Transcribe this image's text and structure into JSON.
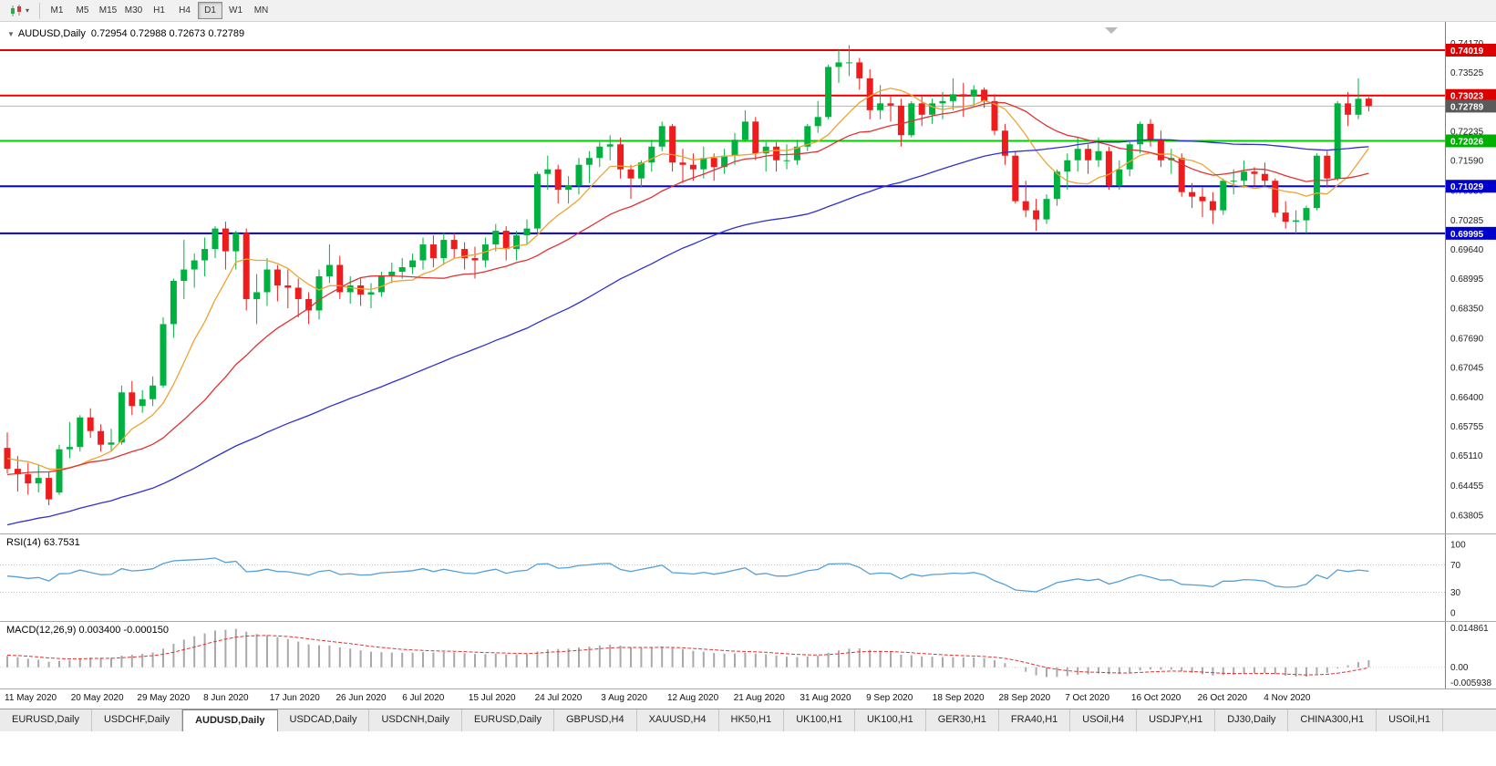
{
  "toolbar": {
    "timeframes": [
      "M1",
      "M5",
      "M15",
      "M30",
      "H1",
      "H4",
      "D1",
      "W1",
      "MN"
    ],
    "active_timeframe": "D1"
  },
  "chart_data": {
    "type": "candlestick",
    "title": "AUDUSD,Daily",
    "ohlc_text": "0.72954 0.72988 0.72673 0.72789",
    "current": {
      "open": 0.72954,
      "high": 0.72988,
      "low": 0.72673,
      "close": 0.72789
    },
    "colors": {
      "bull": "#00b140",
      "bear": "#ee1c1c"
    },
    "price_axis": {
      "top_price": 0.7464,
      "bottom_price": 0.6338,
      "labels": [
        "0.74170",
        "0.73525",
        "0.72880",
        "0.72235",
        "0.71590",
        "0.70930",
        "0.70285",
        "0.69640",
        "0.68995",
        "0.68350",
        "0.67690",
        "0.67045",
        "0.66400",
        "0.65755",
        "0.65110",
        "0.64455",
        "0.63805"
      ]
    },
    "h_lines": [
      {
        "price": 0.74019,
        "label": "0.74019",
        "color": "#e60000",
        "box_color": "#dd0000",
        "width": 2
      },
      {
        "price": 0.73023,
        "label": "0.73023",
        "color": "#e60000",
        "box_color": "#dd0000",
        "width": 2
      },
      {
        "price": 0.72789,
        "label": "0.72789",
        "color": "#b4b4b4",
        "box_color": "#5a5a5a",
        "width": 1,
        "is_bid": true
      },
      {
        "price": 0.72026,
        "label": "0.72026",
        "color": "#00cc00",
        "box_color": "#00b000",
        "width": 2
      },
      {
        "price": 0.71029,
        "label": "0.71029",
        "color": "#0000e6",
        "box_color": "#0000cc",
        "width": 2
      },
      {
        "price": 0.69995,
        "label": "0.69995",
        "color": "#0000e6",
        "box_color": "#0000cc",
        "width": 2
      }
    ],
    "moving_averages": [
      {
        "period": 8,
        "color": "#efa332"
      },
      {
        "period": 20,
        "color": "#e03232"
      },
      {
        "period": 55,
        "color": "#3030d0"
      }
    ],
    "ma_seed": {
      "count": 60,
      "from": 0.615,
      "to": 0.6525,
      "wobble": 0.0018
    },
    "candles": [
      [
        0.6528,
        0.6562,
        0.6472,
        0.6482
      ],
      [
        0.6482,
        0.651,
        0.6432,
        0.647
      ],
      [
        0.647,
        0.6495,
        0.6425,
        0.645
      ],
      [
        0.645,
        0.649,
        0.643,
        0.6462
      ],
      [
        0.6462,
        0.6475,
        0.6402,
        0.6415
      ],
      [
        0.643,
        0.6535,
        0.6425,
        0.6525
      ],
      [
        0.6525,
        0.6585,
        0.6505,
        0.653
      ],
      [
        0.653,
        0.66,
        0.652,
        0.6595
      ],
      [
        0.6595,
        0.6615,
        0.655,
        0.6565
      ],
      [
        0.6565,
        0.658,
        0.652,
        0.6535
      ],
      [
        0.6535,
        0.657,
        0.652,
        0.654
      ],
      [
        0.654,
        0.6665,
        0.6535,
        0.665
      ],
      [
        0.665,
        0.6675,
        0.66,
        0.662
      ],
      [
        0.662,
        0.6655,
        0.6605,
        0.6635
      ],
      [
        0.6635,
        0.6685,
        0.662,
        0.6665
      ],
      [
        0.6665,
        0.6815,
        0.666,
        0.68
      ],
      [
        0.68,
        0.69,
        0.677,
        0.6895
      ],
      [
        0.6895,
        0.6985,
        0.6855,
        0.692
      ],
      [
        0.692,
        0.6955,
        0.688,
        0.694
      ],
      [
        0.694,
        0.699,
        0.6905,
        0.6965
      ],
      [
        0.6965,
        0.7015,
        0.6945,
        0.701
      ],
      [
        0.701,
        0.7025,
        0.692,
        0.696
      ],
      [
        0.696,
        0.7005,
        0.692,
        0.7
      ],
      [
        0.7,
        0.701,
        0.683,
        0.6855
      ],
      [
        0.6855,
        0.691,
        0.68,
        0.687
      ],
      [
        0.687,
        0.6945,
        0.684,
        0.692
      ],
      [
        0.692,
        0.693,
        0.685,
        0.6885
      ],
      [
        0.6885,
        0.692,
        0.6835,
        0.688
      ],
      [
        0.688,
        0.69,
        0.6815,
        0.6855
      ],
      [
        0.6855,
        0.687,
        0.68,
        0.683
      ],
      [
        0.683,
        0.692,
        0.681,
        0.6905
      ],
      [
        0.6905,
        0.6975,
        0.689,
        0.693
      ],
      [
        0.693,
        0.695,
        0.6855,
        0.687
      ],
      [
        0.687,
        0.6905,
        0.6845,
        0.6885
      ],
      [
        0.6885,
        0.69,
        0.684,
        0.6865
      ],
      [
        0.6865,
        0.689,
        0.6835,
        0.687
      ],
      [
        0.687,
        0.6915,
        0.686,
        0.6905
      ],
      [
        0.6905,
        0.6935,
        0.689,
        0.6915
      ],
      [
        0.6915,
        0.6945,
        0.69,
        0.6925
      ],
      [
        0.6925,
        0.6955,
        0.691,
        0.694
      ],
      [
        0.694,
        0.699,
        0.692,
        0.6975
      ],
      [
        0.6975,
        0.6995,
        0.6925,
        0.6945
      ],
      [
        0.6945,
        0.7,
        0.693,
        0.6985
      ],
      [
        0.6985,
        0.7,
        0.6945,
        0.6965
      ],
      [
        0.6965,
        0.698,
        0.692,
        0.6945
      ],
      [
        0.6945,
        0.697,
        0.69,
        0.694
      ],
      [
        0.694,
        0.699,
        0.6925,
        0.6975
      ],
      [
        0.6975,
        0.702,
        0.696,
        0.7005
      ],
      [
        0.7005,
        0.7015,
        0.694,
        0.6965
      ],
      [
        0.6965,
        0.7005,
        0.694,
        0.6995
      ],
      [
        0.6995,
        0.703,
        0.6975,
        0.701
      ],
      [
        0.701,
        0.7135,
        0.7,
        0.713
      ],
      [
        0.713,
        0.717,
        0.7095,
        0.714
      ],
      [
        0.714,
        0.715,
        0.7065,
        0.7095
      ],
      [
        0.7095,
        0.7125,
        0.7065,
        0.7105
      ],
      [
        0.7105,
        0.7165,
        0.7085,
        0.715
      ],
      [
        0.715,
        0.718,
        0.711,
        0.7165
      ],
      [
        0.7165,
        0.72,
        0.7145,
        0.719
      ],
      [
        0.719,
        0.7215,
        0.716,
        0.7195
      ],
      [
        0.7195,
        0.721,
        0.712,
        0.714
      ],
      [
        0.714,
        0.715,
        0.7075,
        0.712
      ],
      [
        0.712,
        0.716,
        0.71,
        0.7155
      ],
      [
        0.7155,
        0.7205,
        0.7135,
        0.719
      ],
      [
        0.719,
        0.7245,
        0.718,
        0.7235
      ],
      [
        0.7235,
        0.724,
        0.7135,
        0.7155
      ],
      [
        0.7155,
        0.7185,
        0.711,
        0.715
      ],
      [
        0.715,
        0.7175,
        0.7115,
        0.714
      ],
      [
        0.714,
        0.719,
        0.712,
        0.7165
      ],
      [
        0.7165,
        0.7175,
        0.7115,
        0.7145
      ],
      [
        0.7145,
        0.7185,
        0.713,
        0.717
      ],
      [
        0.717,
        0.722,
        0.715,
        0.7205
      ],
      [
        0.7205,
        0.727,
        0.72,
        0.7245
      ],
      [
        0.7245,
        0.7255,
        0.716,
        0.7175
      ],
      [
        0.7175,
        0.72,
        0.7135,
        0.719
      ],
      [
        0.719,
        0.72,
        0.7135,
        0.716
      ],
      [
        0.716,
        0.7195,
        0.714,
        0.716
      ],
      [
        0.716,
        0.7205,
        0.715,
        0.719
      ],
      [
        0.719,
        0.724,
        0.718,
        0.7235
      ],
      [
        0.7235,
        0.729,
        0.722,
        0.7255
      ],
      [
        0.7255,
        0.737,
        0.725,
        0.7365
      ],
      [
        0.7365,
        0.7405,
        0.733,
        0.7375
      ],
      [
        0.7375,
        0.7413,
        0.7345,
        0.7375
      ],
      [
        0.7375,
        0.7385,
        0.7315,
        0.734
      ],
      [
        0.734,
        0.736,
        0.725,
        0.727
      ],
      [
        0.727,
        0.7325,
        0.725,
        0.7285
      ],
      [
        0.7285,
        0.73,
        0.7245,
        0.728
      ],
      [
        0.728,
        0.7295,
        0.719,
        0.7215
      ],
      [
        0.7215,
        0.729,
        0.721,
        0.7285
      ],
      [
        0.7285,
        0.73,
        0.7235,
        0.726
      ],
      [
        0.726,
        0.7295,
        0.724,
        0.7285
      ],
      [
        0.7285,
        0.731,
        0.725,
        0.729
      ],
      [
        0.729,
        0.734,
        0.727,
        0.7305
      ],
      [
        0.7305,
        0.733,
        0.7255,
        0.73
      ],
      [
        0.73,
        0.7325,
        0.728,
        0.7315
      ],
      [
        0.7315,
        0.732,
        0.7275,
        0.729
      ],
      [
        0.729,
        0.7305,
        0.7215,
        0.7225
      ],
      [
        0.7225,
        0.724,
        0.715,
        0.717
      ],
      [
        0.717,
        0.718,
        0.7065,
        0.707
      ],
      [
        0.707,
        0.7115,
        0.7035,
        0.705
      ],
      [
        0.705,
        0.7075,
        0.7005,
        0.703
      ],
      [
        0.703,
        0.7085,
        0.702,
        0.7075
      ],
      [
        0.7075,
        0.714,
        0.706,
        0.7135
      ],
      [
        0.7135,
        0.7175,
        0.7095,
        0.716
      ],
      [
        0.716,
        0.721,
        0.7135,
        0.7185
      ],
      [
        0.7185,
        0.7195,
        0.713,
        0.716
      ],
      [
        0.716,
        0.721,
        0.7145,
        0.718
      ],
      [
        0.718,
        0.719,
        0.7095,
        0.7105
      ],
      [
        0.7105,
        0.716,
        0.7095,
        0.714
      ],
      [
        0.714,
        0.72,
        0.7125,
        0.7195
      ],
      [
        0.7195,
        0.7245,
        0.7175,
        0.724
      ],
      [
        0.724,
        0.725,
        0.719,
        0.7205
      ],
      [
        0.7205,
        0.7225,
        0.7145,
        0.716
      ],
      [
        0.716,
        0.7185,
        0.713,
        0.7165
      ],
      [
        0.7165,
        0.7175,
        0.708,
        0.709
      ],
      [
        0.709,
        0.711,
        0.7055,
        0.708
      ],
      [
        0.708,
        0.71,
        0.7035,
        0.707
      ],
      [
        0.707,
        0.709,
        0.702,
        0.705
      ],
      [
        0.705,
        0.712,
        0.704,
        0.7115
      ],
      [
        0.7115,
        0.714,
        0.7085,
        0.7115
      ],
      [
        0.7115,
        0.716,
        0.71,
        0.7135
      ],
      [
        0.7135,
        0.7145,
        0.7105,
        0.713
      ],
      [
        0.713,
        0.7155,
        0.7105,
        0.7115
      ],
      [
        0.7115,
        0.712,
        0.7035,
        0.7045
      ],
      [
        0.7045,
        0.707,
        0.701,
        0.7025
      ],
      [
        0.7025,
        0.705,
        0.6999,
        0.7028
      ],
      [
        0.7028,
        0.706,
        0.7,
        0.7055
      ],
      [
        0.7055,
        0.7175,
        0.705,
        0.717
      ],
      [
        0.717,
        0.718,
        0.71,
        0.712
      ],
      [
        0.712,
        0.729,
        0.7115,
        0.7285
      ],
      [
        0.7285,
        0.731,
        0.7235,
        0.726
      ],
      [
        0.726,
        0.734,
        0.725,
        0.7295
      ],
      [
        0.72954,
        0.72988,
        0.72673,
        0.72789
      ]
    ],
    "x_labels": [
      "11 May 2020",
      "20 May 2020",
      "29 May 2020",
      "8 Jun 2020",
      "17 Jun 2020",
      "26 Jun 2020",
      "6 Jul 2020",
      "15 Jul 2020",
      "24 Jul 2020",
      "3 Aug 2020",
      "12 Aug 2020",
      "21 Aug 2020",
      "31 Aug 2020",
      "9 Sep 2020",
      "18 Sep 2020",
      "28 Sep 2020",
      "7 Oct 2020",
      "16 Oct 2020",
      "26 Oct 2020",
      "4 Nov 2020"
    ],
    "rsi": {
      "label": "RSI(14) 63.7531",
      "period": 14,
      "value": 63.7531,
      "color": "#55a0d8",
      "levels": [
        "100",
        "70",
        "30",
        "0"
      ],
      "level_lines": [
        70,
        30
      ]
    },
    "macd": {
      "label": "MACD(12,26,9) 0.003400 -0.000150",
      "fast": 12,
      "slow": 26,
      "signal_period": 9,
      "main_value": 0.0034,
      "signal_value": -0.00015,
      "axis_max": 0.014861,
      "axis_min": -0.005938,
      "axis_labels": [
        "0.014861",
        "0.00",
        "-0.005938"
      ],
      "hist_color": "#a9a9a9",
      "signal_color": "#e03232"
    }
  },
  "tabs": {
    "active_index": 2,
    "items": [
      "EURUSD,Daily",
      "USDCHF,Daily",
      "AUDUSD,Daily",
      "USDCAD,Daily",
      "USDCNH,Daily",
      "EURUSD,Daily",
      "GBPUSD,H4",
      "XAUUSD,H4",
      "HK50,H1",
      "UK100,H1",
      "UK100,H1",
      "GER30,H1",
      "FRA40,H1",
      "USOil,H4",
      "USDJPY,H1",
      "DJ30,Daily",
      "CHINA300,H1",
      "USOil,H1"
    ]
  }
}
